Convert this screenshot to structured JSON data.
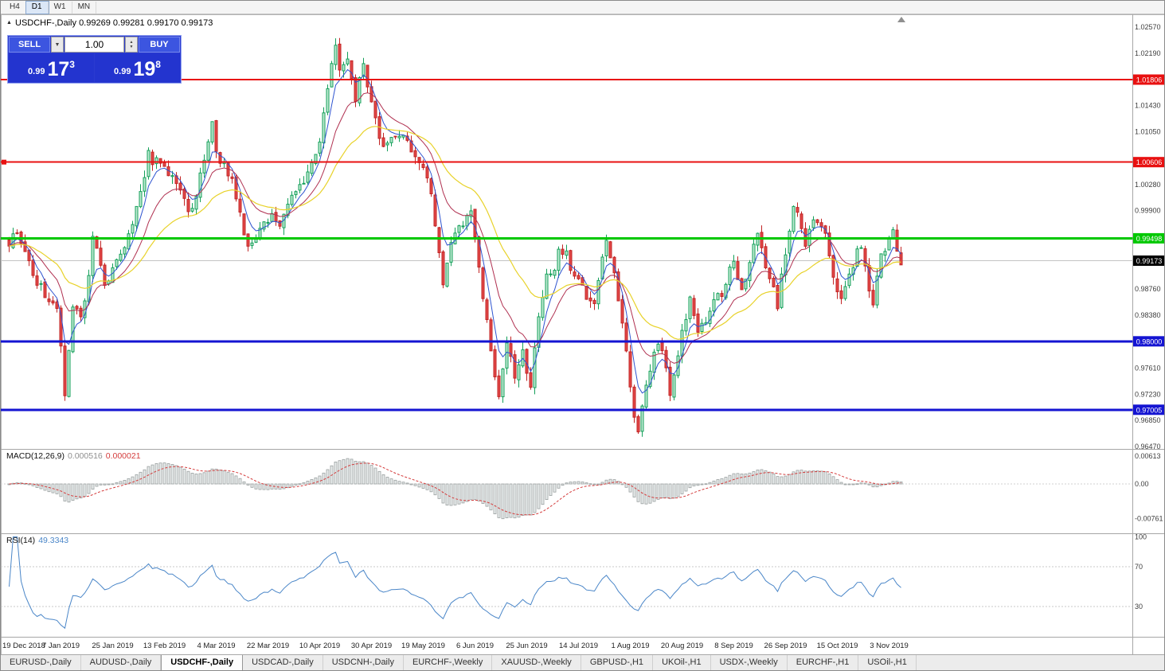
{
  "timeframe_toolbar": {
    "items": [
      {
        "label": "H4",
        "active": false
      },
      {
        "label": "D1",
        "active": true
      },
      {
        "label": "W1",
        "active": false
      },
      {
        "label": "MN",
        "active": false
      }
    ]
  },
  "chart_header": {
    "symbol": "USDCHF-,Daily",
    "open": "0.99269",
    "high": "0.99281",
    "low": "0.99170",
    "close": "0.99173"
  },
  "trade_panel": {
    "sell_label": "SELL",
    "buy_label": "BUY",
    "volume": "1.00",
    "sell_price": {
      "prefix": "0.99",
      "big": "17",
      "sup": "3"
    },
    "buy_price": {
      "prefix": "0.99",
      "big": "19",
      "sup": "8"
    }
  },
  "indicator_labels": {
    "macd": {
      "name": "MACD(12,26,9)",
      "value_main": "0.000516",
      "value_signal": "0.000021"
    },
    "rsi": {
      "name": "RSI(14)",
      "value": "49.3343"
    }
  },
  "icons": {
    "collapse": "▲",
    "chart_shift": "▲",
    "dropdown": "▼",
    "spinner_up": "▲",
    "spinner_down": "▼"
  },
  "tabs": [
    {
      "label": "EURUSD-,Daily",
      "active": false
    },
    {
      "label": "AUDUSD-,Daily",
      "active": false
    },
    {
      "label": "USDCHF-,Daily",
      "active": true
    },
    {
      "label": "USDCAD-,Daily",
      "active": false
    },
    {
      "label": "USDCNH-,Daily",
      "active": false
    },
    {
      "label": "EURCHF-,Weekly",
      "active": false
    },
    {
      "label": "XAUUSD-,Weekly",
      "active": false
    },
    {
      "label": "GBPUSD-,H1",
      "active": false
    },
    {
      "label": "UKOil-,H1",
      "active": false
    },
    {
      "label": "USDX-,Weekly",
      "active": false
    },
    {
      "label": "EURCHF-,H1",
      "active": false
    },
    {
      "label": "USOil-,H1",
      "active": false
    }
  ],
  "chart_data": {
    "type": "candlestick",
    "symbol": "USDCHF-,Daily",
    "timeframe": "Daily",
    "colors": {
      "bull": "#14a05a",
      "bull_fill": "#bfe9d2",
      "bear": "#c22424",
      "bear_fill": "#e24848",
      "ma_fast": "#2e54d0",
      "ma_medium": "#b03050",
      "ma_slow": "#e8d22a",
      "macd_hist": "#9aa0a0",
      "macd_hist_fill": "#e8ecec",
      "macd_signal": "#d43c3c",
      "rsi": "#4a86c8"
    },
    "price_axis": {
      "min": 0.9647,
      "max": 1.0257,
      "ticks": [
        1.0257,
        1.0219,
        1.0143,
        1.0105,
        1.0028,
        0.999,
        0.9876,
        0.9838,
        0.9761,
        0.9723,
        0.9685,
        0.9647
      ],
      "tick_labels": [
        "1.02570",
        "1.02190",
        "1.01430",
        "1.01050",
        "1.00280",
        "0.99900",
        "0.98760",
        "0.98380",
        "0.97610",
        "0.97230",
        "0.96850",
        "0.96470"
      ]
    },
    "current_price": {
      "value": 0.99173,
      "label": "0.99173",
      "color": "#000000"
    },
    "hlines": [
      {
        "value": 1.01806,
        "label": "1.01806",
        "color": "#e81010",
        "width": 2,
        "handle": false
      },
      {
        "value": 1.00606,
        "label": "1.00606",
        "color": "#e81010",
        "width": 2,
        "handle": true
      },
      {
        "value": 0.99498,
        "label": "0.99498",
        "color": "#00c800",
        "width": 3,
        "handle": false
      },
      {
        "value": 0.98,
        "label": "0.98000",
        "color": "#1414d2",
        "width": 3,
        "handle": false
      },
      {
        "value": 0.97005,
        "label": "0.97005",
        "color": "#1414d2",
        "width": 3,
        "handle": false
      }
    ],
    "candle_count": 225,
    "price_anchors": [
      [
        0,
        0.9945
      ],
      [
        2,
        0.9962
      ],
      [
        4,
        0.993
      ],
      [
        6,
        0.99
      ],
      [
        8,
        0.9878
      ],
      [
        10,
        0.9862
      ],
      [
        12,
        0.985
      ],
      [
        13,
        0.98
      ],
      [
        14,
        0.9725
      ],
      [
        15,
        0.9792
      ],
      [
        16,
        0.9852
      ],
      [
        18,
        0.9832
      ],
      [
        20,
        0.9892
      ],
      [
        21,
        0.9958
      ],
      [
        22,
        0.9938
      ],
      [
        24,
        0.9885
      ],
      [
        26,
        0.9905
      ],
      [
        28,
        0.993
      ],
      [
        30,
        0.9958
      ],
      [
        32,
        0.999
      ],
      [
        34,
        1.004
      ],
      [
        35,
        1.0082
      ],
      [
        36,
        1.0058
      ],
      [
        38,
        1.0065
      ],
      [
        40,
        1.0048
      ],
      [
        42,
        1.0028
      ],
      [
        44,
        1.0
      ],
      [
        45,
        0.9985
      ],
      [
        47,
        1.0012
      ],
      [
        49,
        1.0068
      ],
      [
        51,
        1.0118
      ],
      [
        52,
        1.008
      ],
      [
        53,
        1.0052
      ],
      [
        54,
        1.0062
      ],
      [
        56,
        1.003
      ],
      [
        58,
        0.9988
      ],
      [
        60,
        0.9935
      ],
      [
        62,
        0.995
      ],
      [
        64,
        0.997
      ],
      [
        66,
        0.9985
      ],
      [
        68,
        0.9965
      ],
      [
        70,
        1.0
      ],
      [
        72,
        1.0012
      ],
      [
        74,
        1.0035
      ],
      [
        76,
        1.0058
      ],
      [
        78,
        1.009
      ],
      [
        80,
        1.017
      ],
      [
        82,
        1.0235
      ],
      [
        83,
        1.0195
      ],
      [
        85,
        1.0218
      ],
      [
        86,
        1.018
      ],
      [
        87,
        1.0152
      ],
      [
        89,
        1.0205
      ],
      [
        91,
        1.015
      ],
      [
        93,
        1.0092
      ],
      [
        94,
        1.008
      ],
      [
        96,
        1.01
      ],
      [
        98,
        1.0105
      ],
      [
        100,
        1.0085
      ],
      [
        102,
        1.0068
      ],
      [
        104,
        1.0058
      ],
      [
        106,
        1.001
      ],
      [
        108,
        0.993
      ],
      [
        109,
        0.988
      ],
      [
        111,
        0.994
      ],
      [
        113,
        0.9962
      ],
      [
        116,
        0.999
      ],
      [
        118,
        0.991
      ],
      [
        120,
        0.983
      ],
      [
        122,
        0.975
      ],
      [
        123,
        0.9718
      ],
      [
        125,
        0.98
      ],
      [
        127,
        0.975
      ],
      [
        129,
        0.9782
      ],
      [
        131,
        0.974
      ],
      [
        133,
        0.983
      ],
      [
        135,
        0.9895
      ],
      [
        137,
        0.9908
      ],
      [
        138,
        0.993
      ],
      [
        140,
        0.9925
      ],
      [
        142,
        0.9888
      ],
      [
        143,
        0.9895
      ],
      [
        145,
        0.9855
      ],
      [
        147,
        0.985
      ],
      [
        149,
        0.992
      ],
      [
        150,
        0.995
      ],
      [
        152,
        0.99
      ],
      [
        154,
        0.983
      ],
      [
        156,
        0.973
      ],
      [
        158,
        0.9665
      ],
      [
        160,
        0.974
      ],
      [
        162,
        0.978
      ],
      [
        163,
        0.98
      ],
      [
        165,
        0.976
      ],
      [
        166,
        0.9725
      ],
      [
        168,
        0.978
      ],
      [
        169,
        0.9815
      ],
      [
        171,
        0.9858
      ],
      [
        173,
        0.982
      ],
      [
        175,
        0.982
      ],
      [
        177,
        0.9868
      ],
      [
        179,
        0.987
      ],
      [
        181,
        0.9905
      ],
      [
        182,
        0.992
      ],
      [
        184,
        0.987
      ],
      [
        186,
        0.992
      ],
      [
        188,
        0.995
      ],
      [
        190,
        0.991
      ],
      [
        193,
        0.9855
      ],
      [
        195,
        0.993
      ],
      [
        197,
        1.0
      ],
      [
        199,
        0.9962
      ],
      [
        200,
        0.994
      ],
      [
        202,
        0.997
      ],
      [
        203,
        0.998
      ],
      [
        205,
        0.995
      ],
      [
        207,
        0.99
      ],
      [
        209,
        0.986
      ],
      [
        211,
        0.99
      ],
      [
        213,
        0.993
      ],
      [
        214,
        0.9935
      ],
      [
        216,
        0.988
      ],
      [
        217,
        0.986
      ],
      [
        219,
        0.992
      ],
      [
        221,
        0.995
      ],
      [
        222,
        0.996
      ],
      [
        224,
        0.9917
      ]
    ],
    "date_labels": [
      {
        "i": 0,
        "label": "19 Dec 2018"
      },
      {
        "i": 13,
        "label": "7 Jan 2019"
      },
      {
        "i": 26,
        "label": "25 Jan 2019"
      },
      {
        "i": 39,
        "label": "13 Feb 2019"
      },
      {
        "i": 52,
        "label": "4 Mar 2019"
      },
      {
        "i": 65,
        "label": "22 Mar 2019"
      },
      {
        "i": 78,
        "label": "10 Apr 2019"
      },
      {
        "i": 91,
        "label": "30 Apr 2019"
      },
      {
        "i": 104,
        "label": "19 May 2019"
      },
      {
        "i": 117,
        "label": "6 Jun 2019"
      },
      {
        "i": 130,
        "label": "25 Jun 2019"
      },
      {
        "i": 143,
        "label": "14 Jul 2019"
      },
      {
        "i": 156,
        "label": "1 Aug 2019"
      },
      {
        "i": 169,
        "label": "20 Aug 2019"
      },
      {
        "i": 182,
        "label": "8 Sep 2019"
      },
      {
        "i": 195,
        "label": "26 Sep 2019"
      },
      {
        "i": 208,
        "label": "15 Oct 2019"
      },
      {
        "i": 221,
        "label": "3 Nov 2019"
      }
    ],
    "macd": {
      "name": "MACD(12,26,9)",
      "params": [
        12,
        26,
        9
      ],
      "current_main": 0.000516,
      "current_signal": 2.1e-05,
      "axis_values": [
        0.00613,
        0,
        -0.00761
      ],
      "axis_labels": [
        "0.00613",
        "0.00",
        "-0.00761"
      ]
    },
    "rsi": {
      "name": "RSI(14)",
      "period": 14,
      "current": 49.3343,
      "levels": [
        70,
        30
      ],
      "axis_values": [
        100,
        70,
        30
      ],
      "axis_labels": [
        "100",
        "70",
        "30"
      ]
    }
  }
}
